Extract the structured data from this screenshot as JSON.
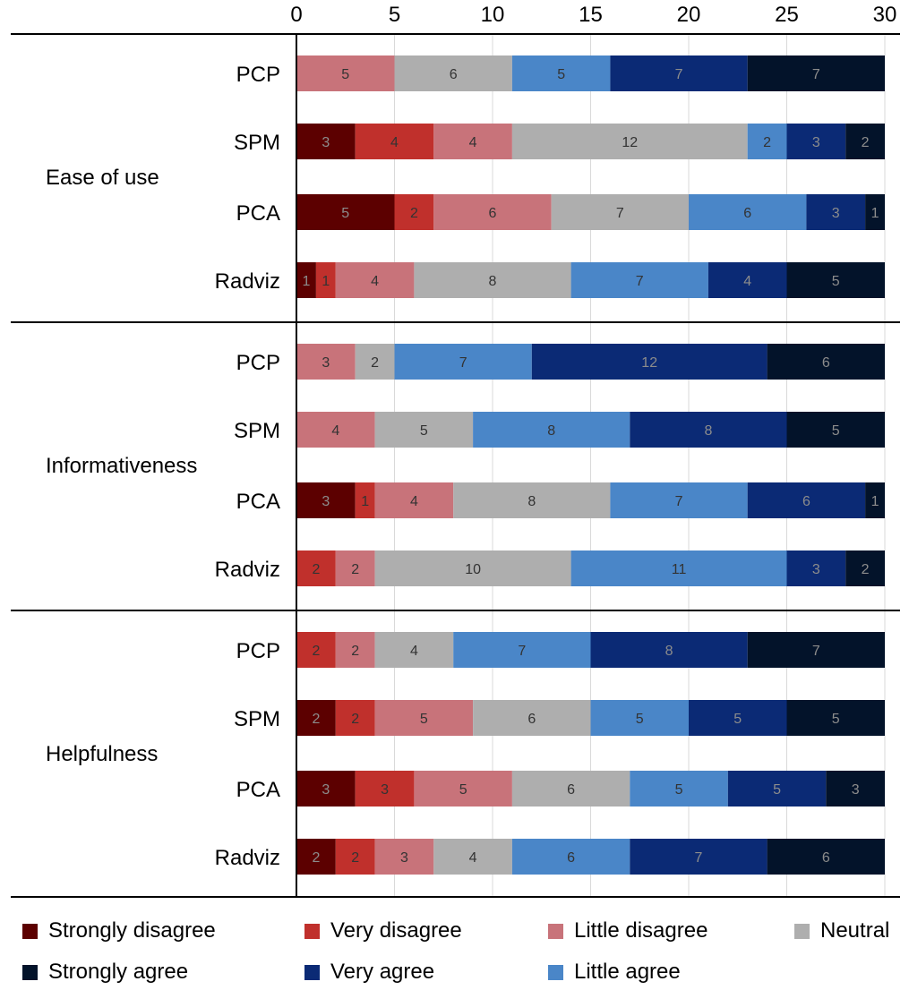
{
  "chart_data": {
    "type": "bar",
    "orientation": "horizontal",
    "stacked": true,
    "xlim": [
      0,
      30
    ],
    "xticks": [
      0,
      5,
      10,
      15,
      20,
      25,
      30
    ],
    "grid": true,
    "legend_position": "bottom",
    "series": [
      {
        "name": "Strongly disagree",
        "color": "#5c0000"
      },
      {
        "name": "Very disagree",
        "color": "#c0302c"
      },
      {
        "name": "Little disagree",
        "color": "#c8737a"
      },
      {
        "name": "Neutral",
        "color": "#aeaeae"
      },
      {
        "name": "Little agree",
        "color": "#4a86c8"
      },
      {
        "name": "Very agree",
        "color": "#0b2a75"
      },
      {
        "name": "Strongly agree",
        "color": "#03132a"
      }
    ],
    "groups": [
      {
        "name": "Ease of use",
        "rows": [
          {
            "label": "PCP",
            "values": [
              0,
              0,
              5,
              6,
              5,
              7,
              7
            ]
          },
          {
            "label": "SPM",
            "values": [
              3,
              4,
              4,
              12,
              2,
              3,
              2
            ]
          },
          {
            "label": "PCA",
            "values": [
              5,
              2,
              6,
              7,
              6,
              3,
              1
            ]
          },
          {
            "label": "Radviz",
            "values": [
              1,
              1,
              4,
              8,
              7,
              4,
              5
            ]
          }
        ]
      },
      {
        "name": "Informativeness",
        "rows": [
          {
            "label": "PCP",
            "values": [
              0,
              0,
              3,
              2,
              7,
              12,
              6
            ]
          },
          {
            "label": "SPM",
            "values": [
              0,
              0,
              4,
              5,
              8,
              8,
              5
            ]
          },
          {
            "label": "PCA",
            "values": [
              3,
              1,
              4,
              8,
              7,
              6,
              1
            ]
          },
          {
            "label": "Radviz",
            "values": [
              0,
              2,
              2,
              10,
              11,
              3,
              2
            ]
          }
        ]
      },
      {
        "name": "Helpfulness",
        "rows": [
          {
            "label": "PCP",
            "values": [
              0,
              2,
              2,
              4,
              7,
              8,
              7
            ]
          },
          {
            "label": "SPM",
            "values": [
              2,
              2,
              5,
              6,
              5,
              5,
              5
            ]
          },
          {
            "label": "PCA",
            "values": [
              3,
              3,
              5,
              6,
              5,
              5,
              3
            ]
          },
          {
            "label": "Radviz",
            "values": [
              2,
              2,
              3,
              4,
              6,
              7,
              6
            ]
          }
        ]
      }
    ]
  },
  "legend": {
    "row1": [
      "Strongly disagree",
      "Very disagree",
      "Little disagree",
      "Neutral"
    ],
    "row2": [
      "Strongly agree",
      "Very agree",
      "Little agree"
    ]
  }
}
